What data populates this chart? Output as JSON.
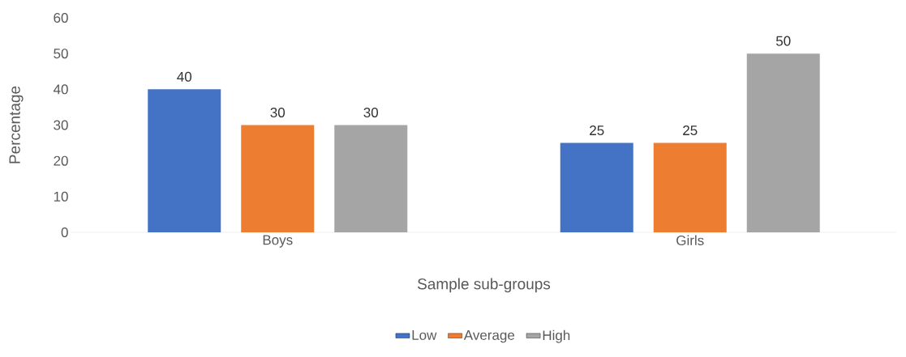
{
  "chart_data": {
    "type": "bar",
    "categories": [
      "Boys",
      "Girls"
    ],
    "xlabel": "Sample sub-groups",
    "ylabel": "Percentage",
    "series": [
      {
        "name": "Low",
        "color": "#4472c4",
        "values": [
          40,
          25
        ]
      },
      {
        "name": "Average",
        "color": "#ed7d31",
        "values": [
          30,
          25
        ]
      },
      {
        "name": "High",
        "color": "#a5a5a5",
        "values": [
          30,
          50
        ]
      }
    ],
    "ylim": [
      0,
      60
    ],
    "yticks": [
      0,
      10,
      20,
      30,
      40,
      50,
      60
    ],
    "data_labels": true,
    "legend": "bottom"
  }
}
